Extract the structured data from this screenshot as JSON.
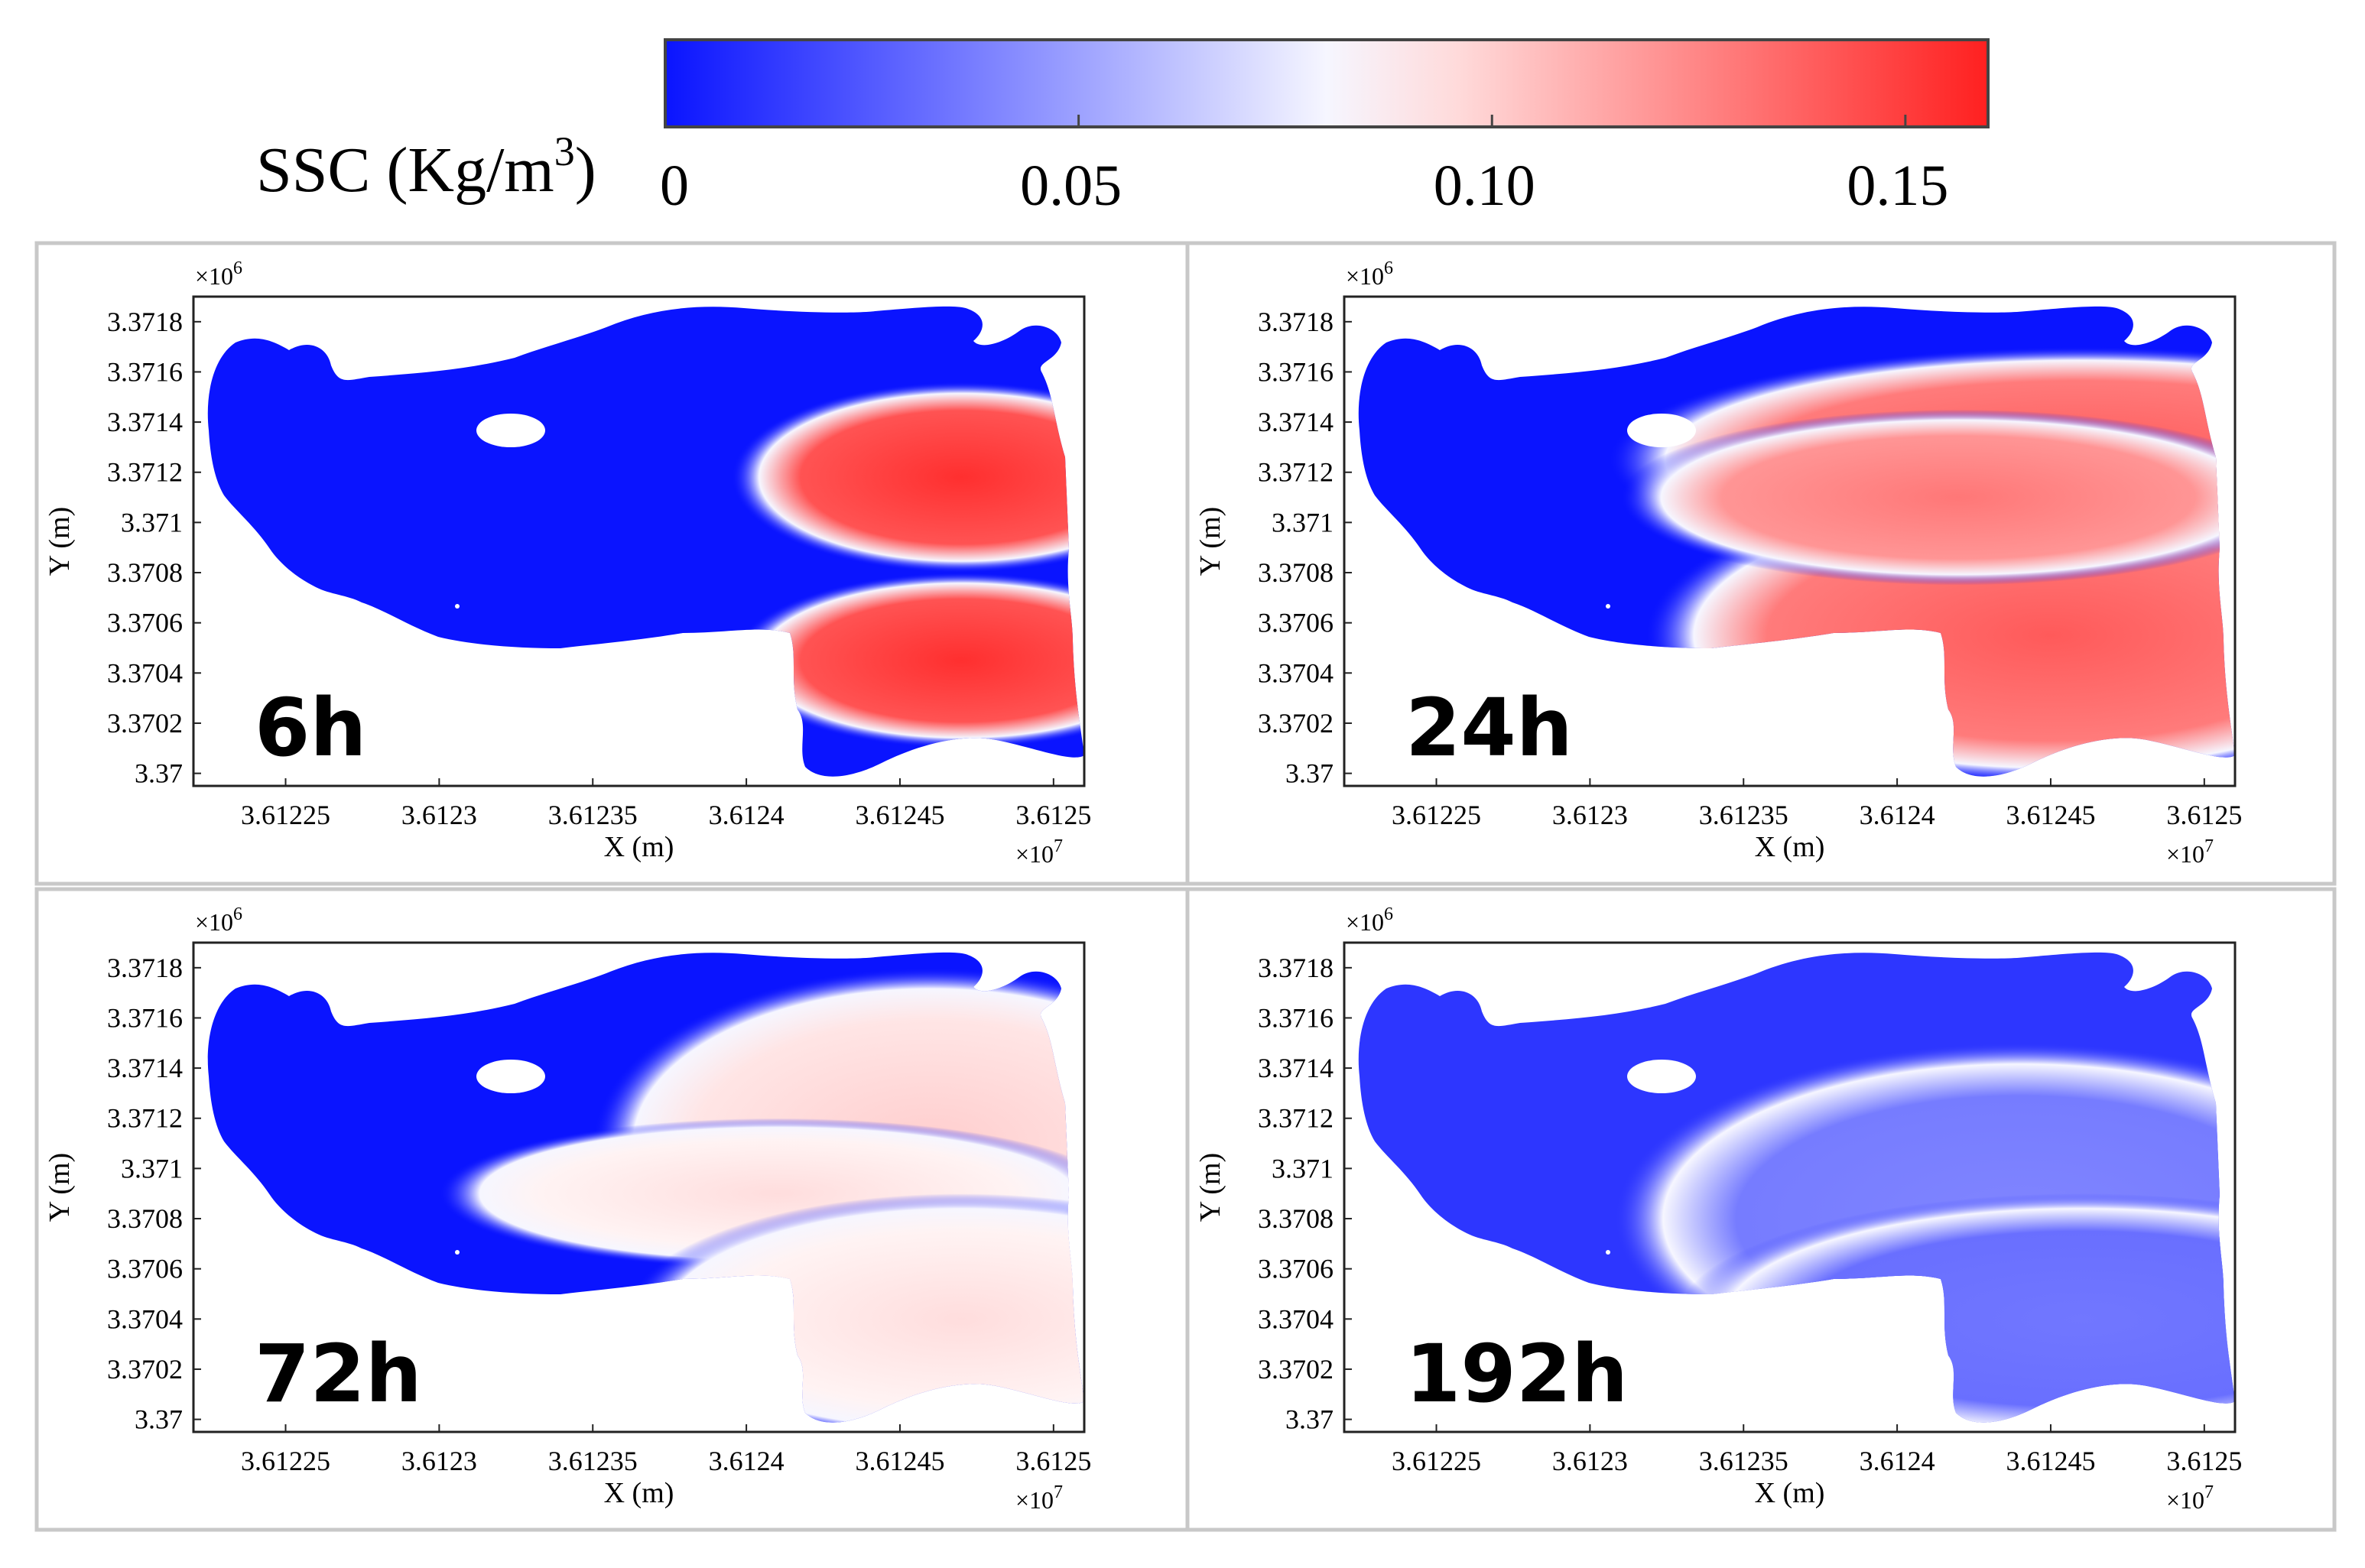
{
  "colorbar": {
    "label_prefix": "SSC (Kg/m",
    "label_superscript": "3",
    "label_suffix": ")",
    "ticks": [
      "0",
      "0.05",
      "0.10",
      "0.15"
    ],
    "tick_values": [
      0,
      0.05,
      0.1,
      0.15
    ],
    "range": [
      0,
      0.16
    ],
    "colors": {
      "low": "#0a14ff",
      "mid": "#ffffff",
      "high": "#ff2020"
    }
  },
  "chart_data": [
    {
      "type": "heatmap",
      "time_label": "6h",
      "xlabel": "X (m)",
      "ylabel": "Y (m)",
      "x_exponent_label": "×10",
      "x_exponent": "7",
      "y_exponent_label": "×10",
      "y_exponent": "6",
      "xticks": [
        "3.61225",
        "3.6123",
        "3.61235",
        "3.6124",
        "3.61245",
        "3.6125"
      ],
      "xtick_values": [
        3.61225,
        3.6123,
        3.61235,
        3.6124,
        3.61245,
        3.6125
      ],
      "yticks": [
        "3.37",
        "3.3702",
        "3.3704",
        "3.3706",
        "3.3708",
        "3.371",
        "3.3712",
        "3.3714",
        "3.3716",
        "3.3718"
      ],
      "ytick_values": [
        3.37,
        3.3702,
        3.3704,
        3.3706,
        3.3708,
        3.371,
        3.3712,
        3.3714,
        3.3716,
        3.3718
      ],
      "xlim": [
        3.61222,
        3.61251
      ],
      "ylim": [
        3.36995,
        3.3719
      ],
      "background_ssc": 0.0,
      "plumes": [
        {
          "x": 3.61247,
          "y": 3.37118,
          "rx": 3.4e-05,
          "ry": 0.00038,
          "ssc": 0.155
        },
        {
          "x": 3.61247,
          "y": 3.37045,
          "rx": 3.4e-05,
          "ry": 0.00035,
          "ssc": 0.155
        }
      ]
    },
    {
      "type": "heatmap",
      "time_label": "24h",
      "xlabel": "X (m)",
      "ylabel": "Y (m)",
      "x_exponent_label": "×10",
      "x_exponent": "7",
      "y_exponent_label": "×10",
      "y_exponent": "6",
      "xticks": [
        "3.61225",
        "3.6123",
        "3.61235",
        "3.6124",
        "3.61245",
        "3.6125"
      ],
      "xtick_values": [
        3.61225,
        3.6123,
        3.61235,
        3.6124,
        3.61245,
        3.6125
      ],
      "yticks": [
        "3.37",
        "3.3702",
        "3.3704",
        "3.3706",
        "3.3708",
        "3.371",
        "3.3712",
        "3.3714",
        "3.3716",
        "3.3718"
      ],
      "ytick_values": [
        3.37,
        3.3702,
        3.3704,
        3.3706,
        3.3708,
        3.371,
        3.3712,
        3.3714,
        3.3716,
        3.3718
      ],
      "xlim": [
        3.61222,
        3.61251
      ],
      "ylim": [
        3.36995,
        3.3719
      ],
      "background_ssc": 0.0,
      "plumes": [
        {
          "x": 3.61246,
          "y": 3.37125,
          "rx": 7e-05,
          "ry": 0.00045,
          "ssc": 0.14
        },
        {
          "x": 3.61245,
          "y": 3.37055,
          "rx": 6e-05,
          "ry": 0.0006,
          "ssc": 0.14
        },
        {
          "x": 3.61242,
          "y": 3.3711,
          "rx": 5e-05,
          "ry": 0.00035,
          "ssc": 0.13
        }
      ]
    },
    {
      "type": "heatmap",
      "time_label": "72h",
      "xlabel": "X (m)",
      "ylabel": "Y (m)",
      "x_exponent_label": "×10",
      "x_exponent": "7",
      "y_exponent_label": "×10",
      "y_exponent": "6",
      "xticks": [
        "3.61225",
        "3.6123",
        "3.61235",
        "3.6124",
        "3.61245",
        "3.6125"
      ],
      "xtick_values": [
        3.61225,
        3.6123,
        3.61235,
        3.6124,
        3.61245,
        3.6125
      ],
      "yticks": [
        "3.37",
        "3.3702",
        "3.3704",
        "3.3706",
        "3.3708",
        "3.371",
        "3.3712",
        "3.3714",
        "3.3716",
        "3.3718"
      ],
      "ytick_values": [
        3.37,
        3.3702,
        3.3704,
        3.3706,
        3.3708,
        3.371,
        3.3712,
        3.3714,
        3.3716,
        3.3718
      ],
      "xlim": [
        3.61222,
        3.61251
      ],
      "ylim": [
        3.36995,
        3.3719
      ],
      "background_ssc": 0.0,
      "plumes": [
        {
          "x": 3.61246,
          "y": 3.3711,
          "rx": 5e-05,
          "ry": 0.0007,
          "ssc": 0.1
        },
        {
          "x": 3.61241,
          "y": 3.3709,
          "rx": 5e-05,
          "ry": 0.0003,
          "ssc": 0.095
        },
        {
          "x": 3.61247,
          "y": 3.3704,
          "rx": 5e-05,
          "ry": 0.0005,
          "ssc": 0.095
        }
      ]
    },
    {
      "type": "heatmap",
      "time_label": "192h",
      "xlabel": "X (m)",
      "ylabel": "Y (m)",
      "x_exponent_label": "×10",
      "x_exponent": "7",
      "y_exponent_label": "×10",
      "y_exponent": "6",
      "xticks": [
        "3.61225",
        "3.6123",
        "3.61235",
        "3.6124",
        "3.61245",
        "3.6125"
      ],
      "xtick_values": [
        3.61225,
        3.6123,
        3.61235,
        3.6124,
        3.61245,
        3.6125
      ],
      "yticks": [
        "3.37",
        "3.3702",
        "3.3704",
        "3.3706",
        "3.3708",
        "3.371",
        "3.3712",
        "3.3714",
        "3.3716",
        "3.3718"
      ],
      "ytick_values": [
        3.37,
        3.3702,
        3.3704,
        3.3706,
        3.3708,
        3.371,
        3.3712,
        3.3714,
        3.3716,
        3.3718
      ],
      "xlim": [
        3.61222,
        3.61251
      ],
      "ylim": [
        3.36995,
        3.3719
      ],
      "background_ssc": 0.012,
      "plumes": [
        {
          "x": 3.61244,
          "y": 3.3708,
          "rx": 6e-05,
          "ry": 0.0007,
          "ssc": 0.04
        },
        {
          "x": 3.61246,
          "y": 3.3704,
          "rx": 6e-05,
          "ry": 0.0005,
          "ssc": 0.035
        }
      ]
    }
  ]
}
